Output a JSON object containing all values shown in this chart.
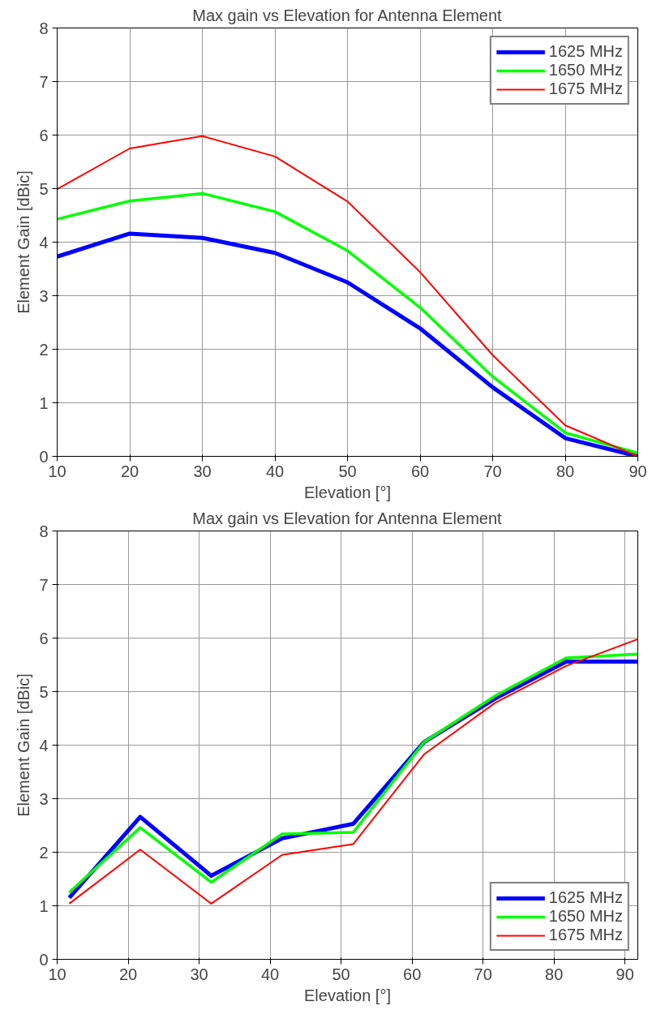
{
  "chart_data": [
    {
      "type": "line",
      "title": "Max gain vs Elevation for Antenna Element",
      "xlabel": "Elevation [°]",
      "ylabel": "Element Gain [dBic]",
      "x": [
        10,
        20,
        30,
        40,
        50,
        60,
        70,
        80,
        90
      ],
      "xlim": [
        10,
        90
      ],
      "xticks": [
        10,
        20,
        30,
        40,
        50,
        60,
        70,
        80,
        90
      ],
      "ylim": [
        0,
        8
      ],
      "yticks": [
        0,
        1,
        2,
        3,
        4,
        5,
        6,
        7,
        8
      ],
      "grid": true,
      "legend": "top right",
      "line_style": "solid",
      "series": [
        {
          "name": "1625 MHz",
          "color": "#0000ff",
          "values": [
            3.73,
            4.16,
            4.08,
            3.8,
            3.25,
            2.39,
            1.29,
            0.34,
            0
          ]
        },
        {
          "name": "1650 MHz",
          "color": "#00ff00",
          "values": [
            4.43,
            4.77,
            4.91,
            4.57,
            3.84,
            2.78,
            1.49,
            0.44,
            0.06
          ]
        },
        {
          "name": "1675 MHz",
          "color": "#ff0000",
          "values": [
            4.99,
            5.75,
            5.98,
            5.6,
            4.76,
            3.44,
            1.89,
            0.58,
            0
          ]
        }
      ]
    },
    {
      "type": "line",
      "title": "Max gain vs Elevation for Antenna Element",
      "xlabel": "Elevation [°]",
      "ylabel": "Element Gain [dBic]",
      "x": [
        11.7,
        21.7,
        31.7,
        41.7,
        51.7,
        61.7,
        71.7,
        81.7,
        91.8
      ],
      "xlim": [
        10,
        91.8
      ],
      "xticks": [
        10,
        20,
        30,
        40,
        50,
        60,
        70,
        80,
        90
      ],
      "ylim": [
        0,
        8
      ],
      "yticks": [
        0,
        1,
        2,
        3,
        4,
        5,
        6,
        7,
        8
      ],
      "grid": true,
      "legend": "bottom right",
      "line_style": "solid",
      "series": [
        {
          "name": "1625 MHz",
          "color": "#0000ff",
          "values": [
            1.15,
            2.66,
            1.56,
            2.26,
            2.53,
            4.06,
            4.87,
            5.56,
            5.56
          ]
        },
        {
          "name": "1650 MHz",
          "color": "#00ff00",
          "values": [
            1.25,
            2.46,
            1.44,
            2.34,
            2.37,
            4.06,
            4.92,
            5.63,
            5.7
          ]
        },
        {
          "name": "1675 MHz",
          "color": "#ff0000",
          "values": [
            1.04,
            2.05,
            1.04,
            1.95,
            2.15,
            3.83,
            4.79,
            5.48,
            5.98
          ]
        }
      ]
    }
  ]
}
